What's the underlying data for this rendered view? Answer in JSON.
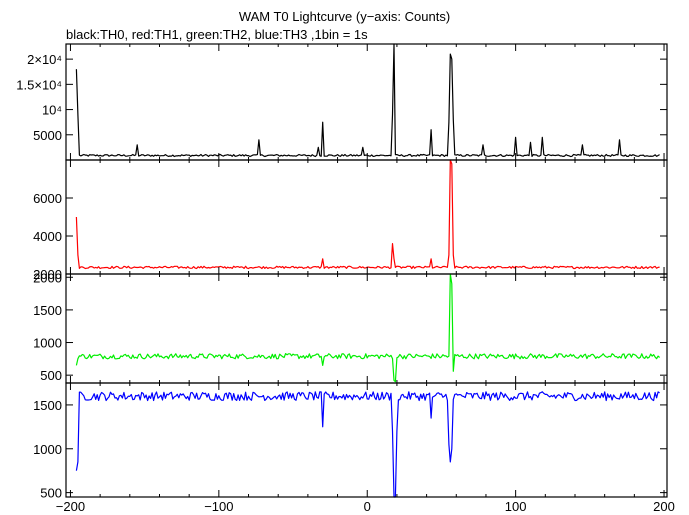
{
  "title": "WAM T0 Lightcurve (y−axis: Counts)",
  "subtitle": "black:TH0, red:TH1, green:TH2, blue:TH3 ,1bin = 1s",
  "chart_data": {
    "type": "line",
    "x_range": [
      -203,
      202
    ],
    "x_ticks": [
      -200,
      -100,
      0,
      100,
      200
    ],
    "x_tick_labels": [
      "−200",
      "−100",
      "0",
      "100",
      "200"
    ],
    "panels": [
      {
        "name": "TH0",
        "color": "#000000",
        "ylim": [
          0,
          23000
        ],
        "y_ticks": [
          5000,
          10000,
          15000,
          20000
        ],
        "y_tick_labels": [
          "5000",
          "10⁴",
          "1.5×10⁴",
          "2×10⁴"
        ],
        "baseline": 900,
        "noise": 200,
        "spikes": [
          {
            "x": -196,
            "y": 18000
          },
          {
            "x": -195,
            "y": 9000
          },
          {
            "x": -155,
            "y": 3000
          },
          {
            "x": -73,
            "y": 4000
          },
          {
            "x": -33,
            "y": 2500
          },
          {
            "x": -30,
            "y": 7500
          },
          {
            "x": -3,
            "y": 2500
          },
          {
            "x": 17,
            "y": 9000
          },
          {
            "x": 18,
            "y": 23000
          },
          {
            "x": 43,
            "y": 6000
          },
          {
            "x": 55,
            "y": 7500
          },
          {
            "x": 56,
            "y": 21000
          },
          {
            "x": 57,
            "y": 20000
          },
          {
            "x": 58,
            "y": 8000
          },
          {
            "x": 78,
            "y": 3000
          },
          {
            "x": 100,
            "y": 4500
          },
          {
            "x": 110,
            "y": 3500
          },
          {
            "x": 118,
            "y": 4500
          },
          {
            "x": 145,
            "y": 3000
          },
          {
            "x": 170,
            "y": 4000
          }
        ]
      },
      {
        "name": "TH1",
        "color": "#ff0000",
        "ylim": [
          2000,
          8000
        ],
        "y_ticks": [
          2000,
          4000,
          6000
        ],
        "y_tick_labels": [
          "2000",
          "4000",
          "6000"
        ],
        "baseline": 2350,
        "noise": 60,
        "spikes": [
          {
            "x": -196,
            "y": 5000
          },
          {
            "x": -195,
            "y": 3000
          },
          {
            "x": -30,
            "y": 2800
          },
          {
            "x": 17,
            "y": 3600
          },
          {
            "x": 18,
            "y": 2800
          },
          {
            "x": 43,
            "y": 2800
          },
          {
            "x": 55,
            "y": 3000
          },
          {
            "x": 56,
            "y": 8000
          },
          {
            "x": 57,
            "y": 7800
          },
          {
            "x": 58,
            "y": 3000
          }
        ]
      },
      {
        "name": "TH2",
        "color": "#00ee00",
        "ylim": [
          380,
          2050
        ],
        "y_ticks": [
          500,
          1000,
          1500,
          2000
        ],
        "y_tick_labels": [
          "500",
          "1000",
          "1500",
          "2000"
        ],
        "baseline": 790,
        "noise": 40,
        "spikes": [
          {
            "x": -196,
            "y": 650
          },
          {
            "x": -30,
            "y": 650
          },
          {
            "x": 18,
            "y": 420
          },
          {
            "x": 19,
            "y": 400
          },
          {
            "x": 56,
            "y": 2050
          },
          {
            "x": 57,
            "y": 1900
          },
          {
            "x": 58,
            "y": 560
          }
        ]
      },
      {
        "name": "TH3",
        "color": "#0000ff",
        "ylim": [
          450,
          1750
        ],
        "y_ticks": [
          500,
          1000,
          1500
        ],
        "y_tick_labels": [
          "500",
          "1000",
          "1500"
        ],
        "baseline": 1600,
        "noise": 50,
        "spikes": [
          {
            "x": -196,
            "y": 750
          },
          {
            "x": -195,
            "y": 850
          },
          {
            "x": -30,
            "y": 1250
          },
          {
            "x": 17,
            "y": 1200
          },
          {
            "x": 18,
            "y": 450
          },
          {
            "x": 19,
            "y": 450
          },
          {
            "x": 20,
            "y": 1200
          },
          {
            "x": 43,
            "y": 1350
          },
          {
            "x": 55,
            "y": 1050
          },
          {
            "x": 56,
            "y": 850
          },
          {
            "x": 57,
            "y": 1000
          }
        ]
      }
    ]
  }
}
